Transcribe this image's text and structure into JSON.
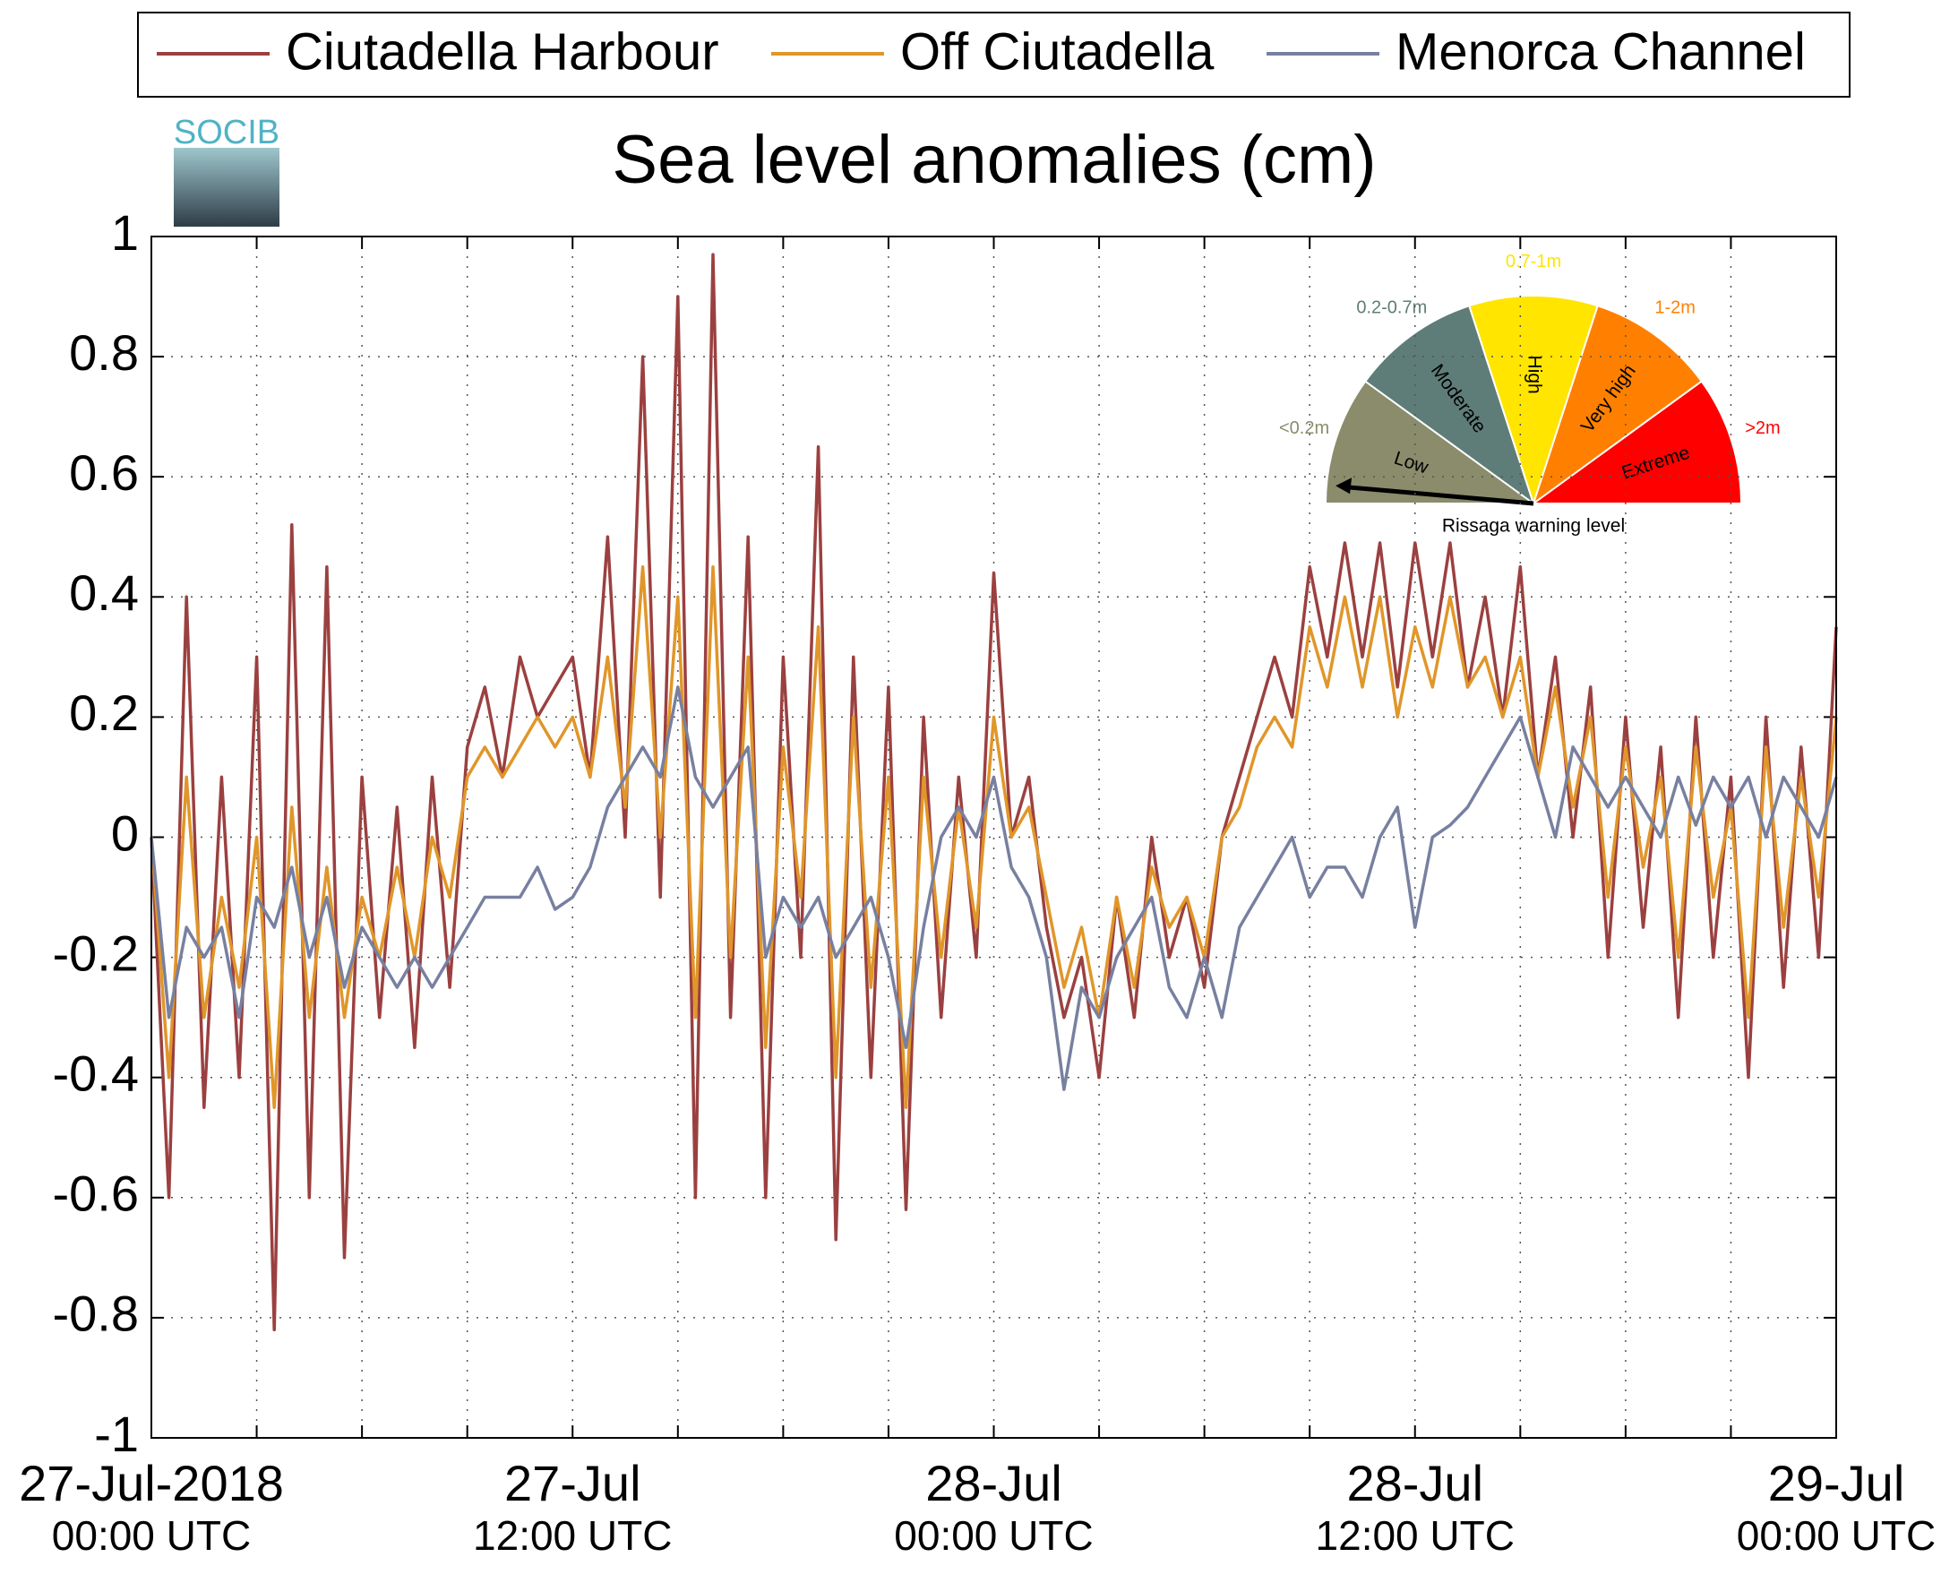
{
  "chart_data": {
    "type": "line",
    "title": "Sea level anomalies (cm)",
    "logo": "SOCIB",
    "x": [
      "2018-07-27T00:00",
      "2018-07-27T00:30",
      "2018-07-27T01:00",
      "2018-07-27T01:30",
      "2018-07-27T02:00",
      "2018-07-27T02:30",
      "2018-07-27T03:00",
      "2018-07-27T03:30",
      "2018-07-27T04:00",
      "2018-07-27T04:30",
      "2018-07-27T05:00",
      "2018-07-27T05:30",
      "2018-07-27T06:00",
      "2018-07-27T06:30",
      "2018-07-27T07:00",
      "2018-07-27T07:30",
      "2018-07-27T08:00",
      "2018-07-27T08:30",
      "2018-07-27T09:00",
      "2018-07-27T09:30",
      "2018-07-27T10:00",
      "2018-07-27T10:30",
      "2018-07-27T11:00",
      "2018-07-27T11:30",
      "2018-07-27T12:00",
      "2018-07-27T12:30",
      "2018-07-27T13:00",
      "2018-07-27T13:30",
      "2018-07-27T14:00",
      "2018-07-27T14:30",
      "2018-07-27T15:00",
      "2018-07-27T15:30",
      "2018-07-27T16:00",
      "2018-07-27T16:30",
      "2018-07-27T17:00",
      "2018-07-27T17:30",
      "2018-07-27T18:00",
      "2018-07-27T18:30",
      "2018-07-27T19:00",
      "2018-07-27T19:30",
      "2018-07-27T20:00",
      "2018-07-27T20:30",
      "2018-07-27T21:00",
      "2018-07-27T21:30",
      "2018-07-27T22:00",
      "2018-07-27T22:30",
      "2018-07-27T23:00",
      "2018-07-27T23:30",
      "2018-07-28T00:00",
      "2018-07-28T00:30",
      "2018-07-28T01:00",
      "2018-07-28T01:30",
      "2018-07-28T02:00",
      "2018-07-28T02:30",
      "2018-07-28T03:00",
      "2018-07-28T03:30",
      "2018-07-28T04:00",
      "2018-07-28T04:30",
      "2018-07-28T05:00",
      "2018-07-28T05:30",
      "2018-07-28T06:00",
      "2018-07-28T06:30",
      "2018-07-28T07:00",
      "2018-07-28T07:30",
      "2018-07-28T08:00",
      "2018-07-28T08:30",
      "2018-07-28T09:00",
      "2018-07-28T09:30",
      "2018-07-28T10:00",
      "2018-07-28T10:30",
      "2018-07-28T11:00",
      "2018-07-28T11:30",
      "2018-07-28T12:00",
      "2018-07-28T12:30",
      "2018-07-28T13:00",
      "2018-07-28T13:30",
      "2018-07-28T14:00",
      "2018-07-28T14:30",
      "2018-07-28T15:00",
      "2018-07-28T15:30",
      "2018-07-28T16:00",
      "2018-07-28T16:30",
      "2018-07-28T17:00",
      "2018-07-28T17:30",
      "2018-07-28T18:00",
      "2018-07-28T18:30",
      "2018-07-28T19:00",
      "2018-07-28T19:30",
      "2018-07-28T20:00",
      "2018-07-28T20:30",
      "2018-07-28T21:00",
      "2018-07-28T21:30",
      "2018-07-28T22:00",
      "2018-07-28T22:30",
      "2018-07-28T23:00",
      "2018-07-28T23:30",
      "2018-07-29T00:00"
    ],
    "series": [
      {
        "name": "Ciutadella Harbour",
        "color": "#9b4040",
        "values": [
          0.0,
          -0.6,
          0.4,
          -0.45,
          0.1,
          -0.4,
          0.3,
          -0.82,
          0.52,
          -0.6,
          0.45,
          -0.7,
          0.1,
          -0.3,
          0.05,
          -0.35,
          0.1,
          -0.25,
          0.15,
          0.25,
          0.1,
          0.3,
          0.2,
          0.25,
          0.3,
          0.1,
          0.5,
          0.0,
          0.8,
          -0.1,
          0.9,
          -0.6,
          0.97,
          -0.3,
          0.5,
          -0.6,
          0.3,
          -0.2,
          0.65,
          -0.67,
          0.3,
          -0.4,
          0.25,
          -0.62,
          0.2,
          -0.3,
          0.1,
          -0.2,
          0.44,
          0.0,
          0.1,
          -0.15,
          -0.3,
          -0.2,
          -0.4,
          -0.1,
          -0.3,
          0.0,
          -0.2,
          -0.1,
          -0.25,
          0.0,
          0.1,
          0.2,
          0.3,
          0.2,
          0.45,
          0.3,
          0.49,
          0.3,
          0.49,
          0.25,
          0.49,
          0.3,
          0.49,
          0.25,
          0.4,
          0.2,
          0.45,
          0.1,
          0.3,
          0.0,
          0.25,
          -0.2,
          0.2,
          -0.15,
          0.15,
          -0.3,
          0.2,
          -0.2,
          0.1,
          -0.4,
          0.2,
          -0.25,
          0.15,
          -0.2,
          0.35
        ]
      },
      {
        "name": "Off Ciutadella",
        "color": "#e0962a",
        "values": [
          0.0,
          -0.4,
          0.1,
          -0.3,
          -0.1,
          -0.25,
          0.0,
          -0.45,
          0.05,
          -0.3,
          -0.05,
          -0.3,
          -0.1,
          -0.2,
          -0.05,
          -0.2,
          0.0,
          -0.1,
          0.1,
          0.15,
          0.1,
          0.15,
          0.2,
          0.15,
          0.2,
          0.1,
          0.3,
          0.05,
          0.45,
          0.0,
          0.4,
          -0.3,
          0.45,
          -0.2,
          0.3,
          -0.35,
          0.15,
          -0.1,
          0.35,
          -0.4,
          0.2,
          -0.25,
          0.1,
          -0.45,
          0.1,
          -0.2,
          0.05,
          -0.15,
          0.2,
          0.0,
          0.05,
          -0.1,
          -0.25,
          -0.15,
          -0.3,
          -0.1,
          -0.25,
          -0.05,
          -0.15,
          -0.1,
          -0.2,
          0.0,
          0.05,
          0.15,
          0.2,
          0.15,
          0.35,
          0.25,
          0.4,
          0.25,
          0.4,
          0.2,
          0.35,
          0.25,
          0.4,
          0.25,
          0.3,
          0.2,
          0.3,
          0.1,
          0.25,
          0.05,
          0.2,
          -0.1,
          0.15,
          -0.05,
          0.1,
          -0.2,
          0.15,
          -0.1,
          0.05,
          -0.3,
          0.15,
          -0.15,
          0.1,
          -0.1,
          0.2
        ]
      },
      {
        "name": "Menorca Channel",
        "color": "#7880a0",
        "values": [
          0.0,
          -0.3,
          -0.15,
          -0.2,
          -0.15,
          -0.3,
          -0.1,
          -0.15,
          -0.05,
          -0.2,
          -0.1,
          -0.25,
          -0.15,
          -0.2,
          -0.25,
          -0.2,
          -0.25,
          -0.2,
          -0.15,
          -0.1,
          -0.1,
          -0.1,
          -0.05,
          -0.12,
          -0.1,
          -0.05,
          0.05,
          0.1,
          0.15,
          0.1,
          0.25,
          0.1,
          0.05,
          0.1,
          0.15,
          -0.2,
          -0.1,
          -0.15,
          -0.1,
          -0.2,
          -0.15,
          -0.1,
          -0.2,
          -0.35,
          -0.15,
          0.0,
          0.05,
          0.0,
          0.1,
          -0.05,
          -0.1,
          -0.2,
          -0.42,
          -0.25,
          -0.3,
          -0.2,
          -0.15,
          -0.1,
          -0.25,
          -0.3,
          -0.2,
          -0.3,
          -0.15,
          -0.1,
          -0.05,
          0.0,
          -0.1,
          -0.05,
          -0.05,
          -0.1,
          0.0,
          0.05,
          -0.15,
          0.0,
          0.02,
          0.05,
          0.1,
          0.15,
          0.2,
          0.1,
          0.0,
          0.15,
          0.1,
          0.05,
          0.1,
          0.05,
          0.0,
          0.1,
          0.02,
          0.1,
          0.05,
          0.1,
          0.0,
          0.1,
          0.05,
          0.0,
          0.1
        ]
      }
    ],
    "xlim": [
      "2018-07-27T00:00",
      "2018-07-29T00:00"
    ],
    "xticks": [
      {
        "value": "2018-07-27T00:00",
        "label": [
          "27-Jul-2018",
          "00:00 UTC"
        ]
      },
      {
        "value": "2018-07-27T03:00",
        "label": null
      },
      {
        "value": "2018-07-27T06:00",
        "label": null
      },
      {
        "value": "2018-07-27T09:00",
        "label": null
      },
      {
        "value": "2018-07-27T12:00",
        "label": [
          "27-Jul",
          "12:00 UTC"
        ]
      },
      {
        "value": "2018-07-27T15:00",
        "label": null
      },
      {
        "value": "2018-07-27T18:00",
        "label": null
      },
      {
        "value": "2018-07-27T21:00",
        "label": null
      },
      {
        "value": "2018-07-28T00:00",
        "label": [
          "28-Jul",
          "00:00 UTC"
        ]
      },
      {
        "value": "2018-07-28T03:00",
        "label": null
      },
      {
        "value": "2018-07-28T06:00",
        "label": null
      },
      {
        "value": "2018-07-28T09:00",
        "label": null
      },
      {
        "value": "2018-07-28T12:00",
        "label": [
          "28-Jul",
          "12:00 UTC"
        ]
      },
      {
        "value": "2018-07-28T15:00",
        "label": null
      },
      {
        "value": "2018-07-28T18:00",
        "label": null
      },
      {
        "value": "2018-07-28T21:00",
        "label": null
      },
      {
        "value": "2018-07-29T00:00",
        "label": [
          "29-Jul",
          "00:00 UTC"
        ]
      }
    ],
    "ylim": [
      -1,
      1
    ],
    "yticks": [
      -1,
      -0.8,
      -0.6,
      -0.4,
      -0.2,
      0,
      0.2,
      0.4,
      0.6,
      0.8,
      1
    ],
    "grid": true,
    "legend": "top",
    "gauge": {
      "label": "Rissaga warning level",
      "levels": [
        {
          "name": "Low",
          "range": "<0.2m",
          "color": "#8a8c6c"
        },
        {
          "name": "Moderate",
          "range": "0.2-0.7m",
          "color": "#5f7d78"
        },
        {
          "name": "High",
          "range": "0.7-1m",
          "color": "#ffe500"
        },
        {
          "name": "Very high",
          "range": "1-2m",
          "color": "#ff8000"
        },
        {
          "name": "Extreme",
          "range": ">2m",
          "color": "#ff0000"
        }
      ]
    }
  }
}
